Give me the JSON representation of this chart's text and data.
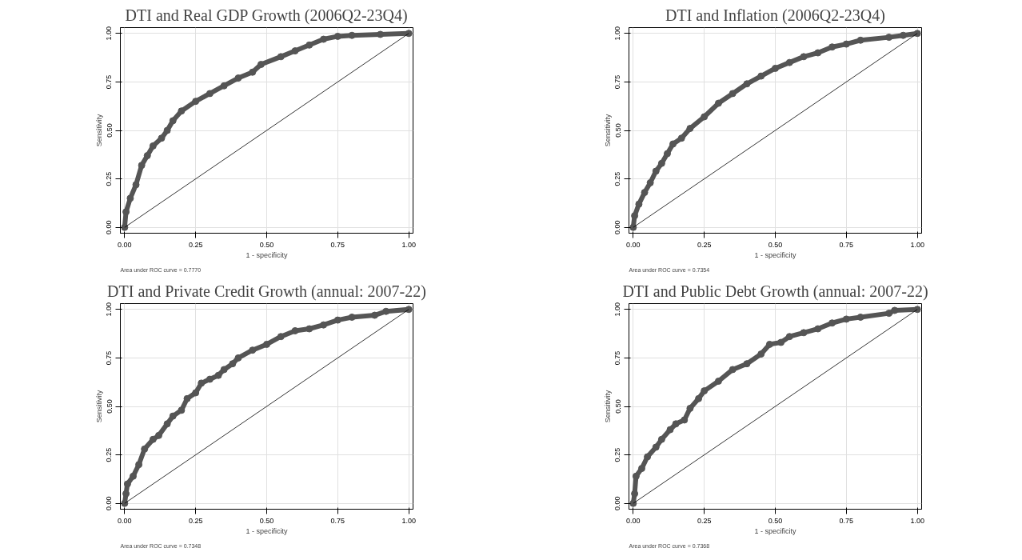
{
  "chart_data": [
    {
      "type": "line",
      "title": "DTI and Real GDP Growth (2006Q2-23Q4)",
      "xlabel": "1 - specificity",
      "ylabel": "Sensitivity",
      "annotations": [
        "Area under ROC curve = 0.7770"
      ],
      "xlim": [
        -0.015,
        1.015
      ],
      "ylim": [
        -0.03,
        1.03
      ],
      "xticks": [
        {
          "value": 0,
          "label": "0.00"
        },
        {
          "value": 0.25,
          "label": "0.25"
        },
        {
          "value": 0.5,
          "label": "0.50"
        },
        {
          "value": 0.75,
          "label": "0.75"
        },
        {
          "value": 1,
          "label": "1.00"
        }
      ],
      "yticks": [
        {
          "value": 0,
          "label": "0.00"
        },
        {
          "value": 0.25,
          "label": "0.25"
        },
        {
          "value": 0.5,
          "label": "0.50"
        },
        {
          "value": 0.75,
          "label": "0.75"
        },
        {
          "value": 1,
          "label": "1.00"
        }
      ],
      "grid": true,
      "series": [
        {
          "color": "#555555",
          "marker": "circle",
          "x": [
            0,
            0.005,
            0.02,
            0.04,
            0.06,
            0.08,
            0.1,
            0.13,
            0.15,
            0.17,
            0.2,
            0.25,
            0.3,
            0.35,
            0.4,
            0.45,
            0.48,
            0.55,
            0.6,
            0.65,
            0.7,
            0.75,
            0.8,
            0.9,
            1
          ],
          "values": [
            0,
            0.08,
            0.15,
            0.22,
            0.32,
            0.37,
            0.42,
            0.46,
            0.5,
            0.55,
            0.6,
            0.65,
            0.69,
            0.73,
            0.77,
            0.8,
            0.84,
            0.88,
            0.91,
            0.94,
            0.97,
            0.985,
            0.99,
            0.995,
            1
          ]
        },
        {
          "color": "#000000",
          "marker": "none",
          "x": [
            0,
            1
          ],
          "values": [
            0,
            1
          ]
        }
      ]
    },
    {
      "type": "line",
      "title": "DTI and Inflation (2006Q2-23Q4)",
      "xlabel": "1 - specificity",
      "ylabel": "Sensitivity",
      "annotations": [
        "Area under ROC curve = 0.7354"
      ],
      "xlim": [
        -0.015,
        1.015
      ],
      "ylim": [
        -0.03,
        1.03
      ],
      "xticks": [
        {
          "value": 0,
          "label": "0.00"
        },
        {
          "value": 0.25,
          "label": "0.25"
        },
        {
          "value": 0.5,
          "label": "0.50"
        },
        {
          "value": 0.75,
          "label": "0.75"
        },
        {
          "value": 1,
          "label": "1.00"
        }
      ],
      "yticks": [
        {
          "value": 0,
          "label": "0.00"
        },
        {
          "value": 0.25,
          "label": "0.25"
        },
        {
          "value": 0.5,
          "label": "0.50"
        },
        {
          "value": 0.75,
          "label": "0.75"
        },
        {
          "value": 1,
          "label": "1.00"
        }
      ],
      "grid": true,
      "series": [
        {
          "color": "#555555",
          "marker": "circle",
          "x": [
            0,
            0.005,
            0.02,
            0.04,
            0.06,
            0.08,
            0.1,
            0.12,
            0.14,
            0.17,
            0.2,
            0.25,
            0.3,
            0.35,
            0.4,
            0.45,
            0.5,
            0.55,
            0.6,
            0.65,
            0.7,
            0.75,
            0.8,
            0.9,
            0.95,
            1
          ],
          "values": [
            0,
            0.06,
            0.12,
            0.18,
            0.23,
            0.29,
            0.33,
            0.38,
            0.43,
            0.46,
            0.51,
            0.57,
            0.64,
            0.69,
            0.74,
            0.78,
            0.82,
            0.85,
            0.88,
            0.9,
            0.93,
            0.945,
            0.965,
            0.98,
            0.99,
            1
          ]
        },
        {
          "color": "#000000",
          "marker": "none",
          "x": [
            0,
            1
          ],
          "values": [
            0,
            1
          ]
        }
      ]
    },
    {
      "type": "line",
      "title": "DTI and Private Credit Growth (annual: 2007-22)",
      "xlabel": "1 - specificity",
      "ylabel": "Sensitivity",
      "annotations": [
        "Area under ROC curve = 0.7348"
      ],
      "xlim": [
        -0.015,
        1.015
      ],
      "ylim": [
        -0.03,
        1.03
      ],
      "xticks": [
        {
          "value": 0,
          "label": "0.00"
        },
        {
          "value": 0.25,
          "label": "0.25"
        },
        {
          "value": 0.5,
          "label": "0.50"
        },
        {
          "value": 0.75,
          "label": "0.75"
        },
        {
          "value": 1,
          "label": "1.00"
        }
      ],
      "yticks": [
        {
          "value": 0,
          "label": "0.00"
        },
        {
          "value": 0.25,
          "label": "0.25"
        },
        {
          "value": 0.5,
          "label": "0.50"
        },
        {
          "value": 0.75,
          "label": "0.75"
        },
        {
          "value": 1,
          "label": "1.00"
        }
      ],
      "grid": true,
      "series": [
        {
          "color": "#555555",
          "marker": "circle",
          "x": [
            0,
            0.005,
            0.01,
            0.03,
            0.05,
            0.07,
            0.1,
            0.12,
            0.15,
            0.17,
            0.2,
            0.22,
            0.25,
            0.27,
            0.3,
            0.33,
            0.35,
            0.38,
            0.4,
            0.45,
            0.5,
            0.55,
            0.6,
            0.65,
            0.7,
            0.75,
            0.8,
            0.88,
            0.92,
            1
          ],
          "values": [
            0,
            0.05,
            0.1,
            0.14,
            0.2,
            0.28,
            0.33,
            0.35,
            0.41,
            0.45,
            0.48,
            0.54,
            0.57,
            0.62,
            0.64,
            0.66,
            0.69,
            0.72,
            0.75,
            0.79,
            0.82,
            0.86,
            0.89,
            0.9,
            0.92,
            0.945,
            0.96,
            0.97,
            0.99,
            1
          ]
        },
        {
          "color": "#000000",
          "marker": "none",
          "x": [
            0,
            1
          ],
          "values": [
            0,
            1
          ]
        }
      ]
    },
    {
      "type": "line",
      "title": "DTI and Public Debt Growth (annual: 2007-22)",
      "xlabel": "1 - specificity",
      "ylabel": "Sensitivity",
      "annotations": [
        "Area under ROC curve = 0.7368"
      ],
      "xlim": [
        -0.015,
        1.015
      ],
      "ylim": [
        -0.03,
        1.03
      ],
      "xticks": [
        {
          "value": 0,
          "label": "0.00"
        },
        {
          "value": 0.25,
          "label": "0.25"
        },
        {
          "value": 0.5,
          "label": "0.50"
        },
        {
          "value": 0.75,
          "label": "0.75"
        },
        {
          "value": 1,
          "label": "1.00"
        }
      ],
      "yticks": [
        {
          "value": 0,
          "label": "0.00"
        },
        {
          "value": 0.25,
          "label": "0.25"
        },
        {
          "value": 0.5,
          "label": "0.50"
        },
        {
          "value": 0.75,
          "label": "0.75"
        },
        {
          "value": 1,
          "label": "1.00"
        }
      ],
      "grid": true,
      "series": [
        {
          "color": "#555555",
          "marker": "circle",
          "x": [
            0,
            0.005,
            0.01,
            0.03,
            0.05,
            0.08,
            0.1,
            0.13,
            0.15,
            0.18,
            0.2,
            0.23,
            0.25,
            0.3,
            0.35,
            0.4,
            0.45,
            0.48,
            0.52,
            0.55,
            0.6,
            0.65,
            0.7,
            0.75,
            0.8,
            0.9,
            0.92,
            1
          ],
          "values": [
            0,
            0.05,
            0.14,
            0.18,
            0.24,
            0.29,
            0.33,
            0.38,
            0.41,
            0.43,
            0.49,
            0.54,
            0.58,
            0.63,
            0.69,
            0.72,
            0.77,
            0.82,
            0.83,
            0.86,
            0.88,
            0.9,
            0.93,
            0.95,
            0.96,
            0.98,
            0.995,
            1
          ]
        },
        {
          "color": "#000000",
          "marker": "none",
          "x": [
            0,
            1
          ],
          "values": [
            0,
            1
          ]
        }
      ]
    }
  ]
}
